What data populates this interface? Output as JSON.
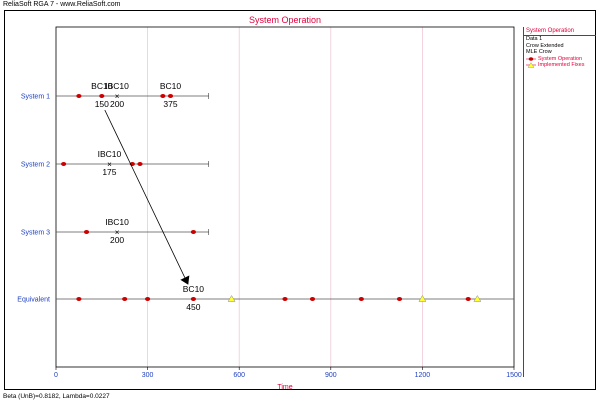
{
  "app_title": "ReliaSoft RGA 7 - www.ReliaSoft.com",
  "footer": "Beta (UnB)=0.8182, Lambda=0.0227",
  "legend": {
    "title": "System Operation",
    "lines": [
      "Data 1",
      "Crow Extended",
      "MLE Crow"
    ],
    "entries": [
      "System Operation",
      "Implemented Fixes"
    ]
  },
  "colors": {
    "accent": "#e0003c",
    "system_label": "#1f3fbf",
    "failure_marker": "#cc0000",
    "fix_marker": "#ffff33",
    "grid": "#f0c8d8"
  },
  "chart_data": {
    "type": "scatter",
    "title": "System Operation",
    "xlabel": "Time",
    "ylabel": "",
    "xlim": [
      0,
      1500
    ],
    "xticks": [
      0,
      300,
      600,
      900,
      1200,
      1500
    ],
    "grid": true,
    "legend_position": "right",
    "systems": [
      {
        "name": "System 1",
        "end_time": 500,
        "failures": [
          75,
          150,
          350,
          375
        ],
        "annotations": [
          {
            "mode": "BC10",
            "time": 150,
            "label": "150",
            "marker": "dot"
          },
          {
            "mode": "IBC10",
            "time": 200,
            "label": "200",
            "marker": "x"
          },
          {
            "mode": "BC10",
            "time": 375,
            "label": "375",
            "marker": "dot"
          }
        ]
      },
      {
        "name": "System 2",
        "end_time": 500,
        "failures": [
          25,
          250,
          275
        ],
        "annotations": [
          {
            "mode": "IBC10",
            "time": 175,
            "label": "175",
            "marker": "x"
          }
        ]
      },
      {
        "name": "System 3",
        "end_time": 500,
        "failures": [
          100,
          450
        ],
        "annotations": [
          {
            "mode": "IBC10",
            "time": 200,
            "label": "200",
            "marker": "x"
          }
        ]
      },
      {
        "name": "Equivalent",
        "end_time": 1500,
        "failures": [
          75,
          225,
          300,
          450,
          750,
          840,
          1000,
          1125,
          1350
        ],
        "fixes": [
          575,
          1200,
          1380
        ],
        "annotations": [
          {
            "mode": "BC10",
            "time": 450,
            "label": "450",
            "marker": "dot"
          }
        ]
      }
    ],
    "arrow": {
      "from_system": "System 1",
      "from_time": 150,
      "to_system": "Equivalent",
      "to_time": 450
    }
  }
}
